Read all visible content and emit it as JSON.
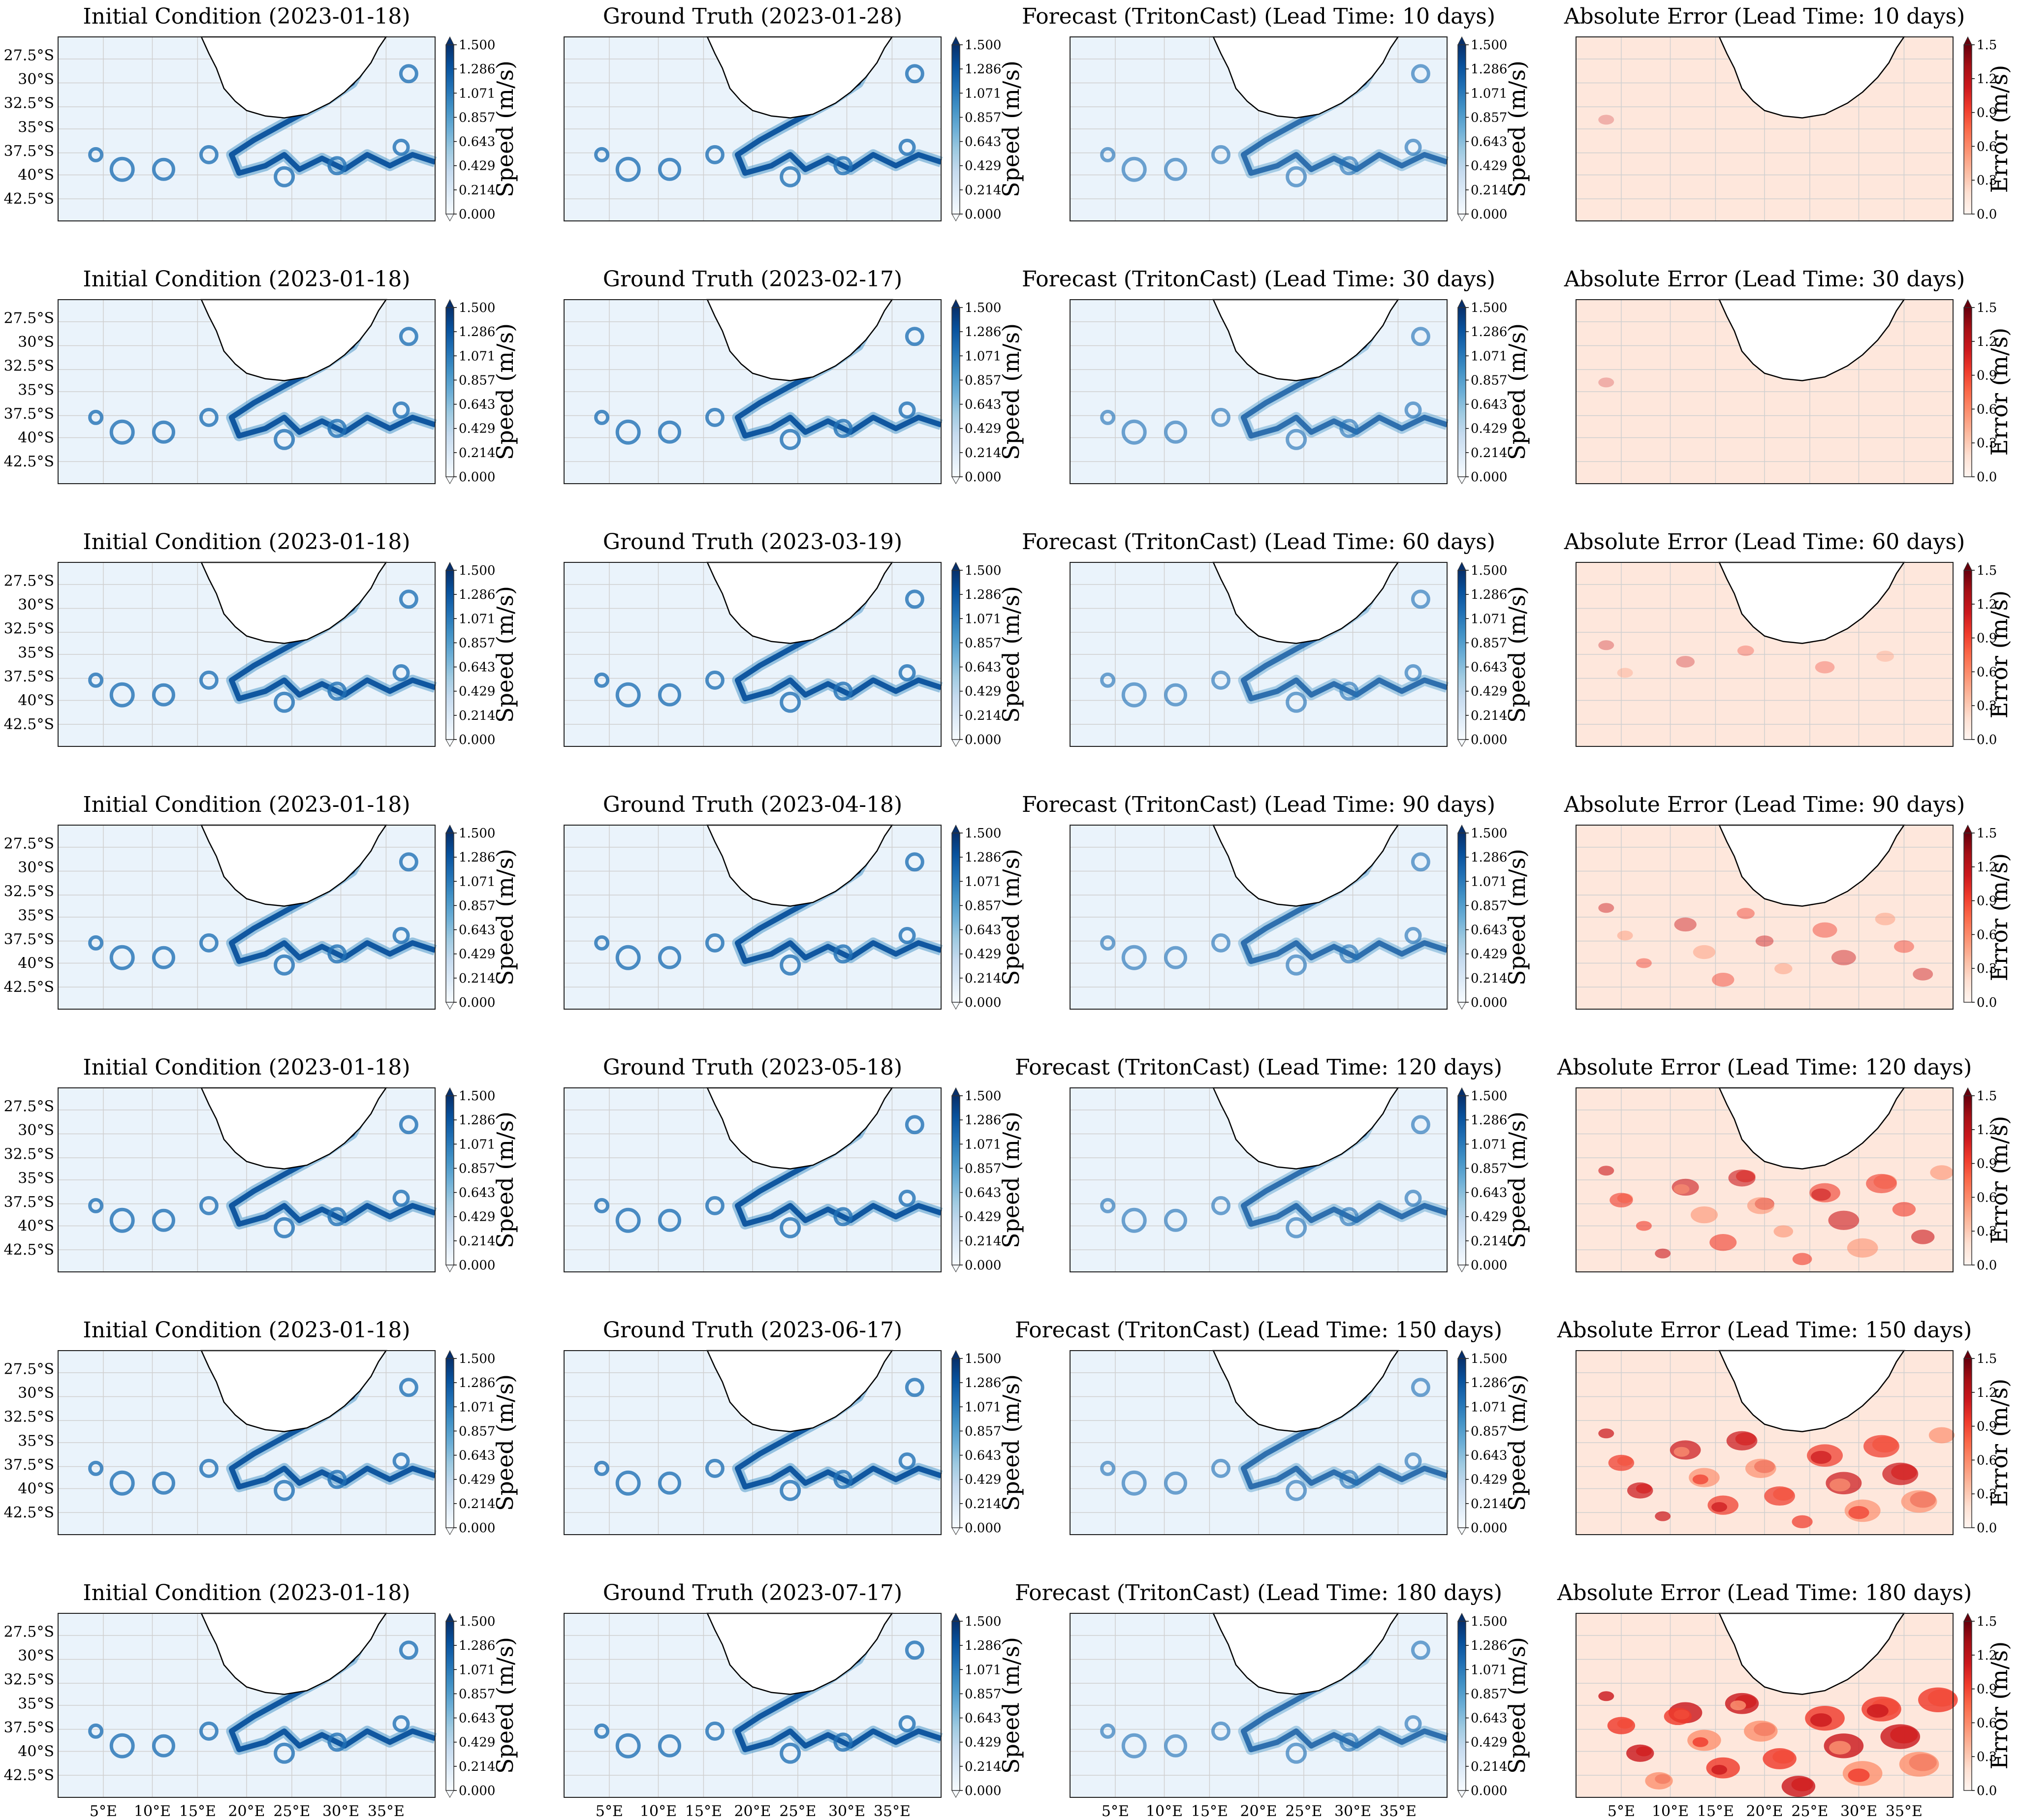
{
  "figure": {
    "rows": [
      {
        "ic_title": "Initial Condition (2023-01-18)",
        "gt_title": "Ground Truth (2023-01-28)",
        "fc_title": "Forecast (TritonCast) (Lead Time: 10 days)",
        "err_title": "Absolute Error (Lead Time: 10 days)",
        "error_level": 0.02
      },
      {
        "ic_title": "Initial Condition (2023-01-18)",
        "gt_title": "Ground Truth (2023-02-17)",
        "fc_title": "Forecast (TritonCast) (Lead Time: 30 days)",
        "err_title": "Absolute Error (Lead Time: 30 days)",
        "error_level": 0.03
      },
      {
        "ic_title": "Initial Condition (2023-01-18)",
        "gt_title": "Ground Truth (2023-03-19)",
        "fc_title": "Forecast (TritonCast) (Lead Time: 60 days)",
        "err_title": "Absolute Error (Lead Time: 60 days)",
        "error_level": 0.15
      },
      {
        "ic_title": "Initial Condition (2023-01-18)",
        "gt_title": "Ground Truth (2023-04-18)",
        "fc_title": "Forecast (TritonCast) (Lead Time: 90 days)",
        "err_title": "Absolute Error (Lead Time: 90 days)",
        "error_level": 0.35
      },
      {
        "ic_title": "Initial Condition (2023-01-18)",
        "gt_title": "Ground Truth (2023-05-18)",
        "fc_title": "Forecast (TritonCast) (Lead Time: 120 days)",
        "err_title": "Absolute Error (Lead Time: 120 days)",
        "error_level": 0.6
      },
      {
        "ic_title": "Initial Condition (2023-01-18)",
        "gt_title": "Ground Truth (2023-06-17)",
        "fc_title": "Forecast (TritonCast) (Lead Time: 150 days)",
        "err_title": "Absolute Error (Lead Time: 150 days)",
        "error_level": 0.8
      },
      {
        "ic_title": "Initial Condition (2023-01-18)",
        "gt_title": "Ground Truth (2023-07-17)",
        "fc_title": "Forecast (TritonCast) (Lead Time: 180 days)",
        "err_title": "Absolute Error (Lead Time: 180 days)",
        "error_level": 0.95
      }
    ],
    "lat_ticks": [
      "27.5°S",
      "30°S",
      "32.5°S",
      "35°S",
      "37.5°S",
      "40°S",
      "42.5°S"
    ],
    "lon_ticks": [
      "5°E",
      "10°E",
      "15°E",
      "20°E",
      "25°E",
      "30°E",
      "35°E"
    ],
    "speed_colorbar": {
      "label": "Speed (m/s)",
      "ticks": [
        "1.500",
        "1.286",
        "1.071",
        "0.857",
        "0.643",
        "0.429",
        "0.214",
        "0.000"
      ],
      "colors": [
        "#f7fbff",
        "#deebf7",
        "#c6dbef",
        "#9ecae1",
        "#6baed6",
        "#4292c6",
        "#2171b5",
        "#08519c",
        "#08306b"
      ]
    },
    "error_colorbar": {
      "label": "Error (m/s)",
      "ticks": [
        "1.5",
        "1.2",
        "0.9",
        "0.6",
        "0.3",
        "0.0"
      ],
      "colors": [
        "#fff5f0",
        "#fee0d2",
        "#fcbba1",
        "#fc9272",
        "#fb6a4a",
        "#ef3b2c",
        "#cb181d",
        "#a50f15",
        "#67000d"
      ]
    }
  }
}
